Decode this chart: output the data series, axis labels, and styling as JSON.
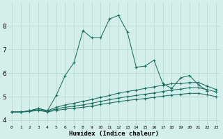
{
  "xlabel": "Humidex (Indice chaleur)",
  "xlim": [
    -0.5,
    23.5
  ],
  "ylim": [
    3.8,
    9.0
  ],
  "xticks": [
    0,
    1,
    2,
    3,
    4,
    5,
    6,
    7,
    8,
    9,
    10,
    11,
    12,
    13,
    14,
    15,
    16,
    17,
    18,
    19,
    20,
    21,
    22,
    23
  ],
  "yticks": [
    4,
    5,
    6,
    7,
    8
  ],
  "bg_color": "#d4eeea",
  "grid_color": "#b2d8d2",
  "line_color": "#1a6e60",
  "line1_x": [
    0,
    1,
    2,
    3,
    4,
    5,
    6,
    7,
    8,
    9,
    10,
    11,
    12,
    13,
    14,
    15,
    16,
    17,
    18,
    19,
    20,
    21,
    22
  ],
  "line1_y": [
    4.35,
    4.35,
    4.4,
    4.5,
    4.4,
    5.05,
    5.9,
    6.45,
    7.8,
    7.5,
    7.5,
    8.3,
    8.45,
    7.75,
    6.25,
    6.3,
    6.55,
    5.55,
    5.35,
    5.8,
    5.9,
    5.5,
    5.25
  ],
  "line2_x": [
    0,
    1,
    2,
    3,
    4,
    5,
    6,
    7,
    8,
    9,
    10,
    11,
    12,
    13,
    14,
    15,
    16,
    17,
    18,
    19,
    20,
    21,
    22,
    23
  ],
  "line2_y": [
    4.35,
    4.35,
    4.4,
    4.5,
    4.4,
    4.55,
    4.65,
    4.72,
    4.8,
    4.88,
    4.97,
    5.05,
    5.15,
    5.22,
    5.28,
    5.35,
    5.42,
    5.48,
    5.55,
    5.55,
    5.6,
    5.6,
    5.45,
    5.3
  ],
  "line3_x": [
    0,
    1,
    2,
    3,
    4,
    5,
    6,
    7,
    8,
    9,
    10,
    11,
    12,
    13,
    14,
    15,
    16,
    17,
    18,
    19,
    20,
    21,
    22,
    23
  ],
  "line3_y": [
    4.35,
    4.35,
    4.38,
    4.45,
    4.38,
    4.48,
    4.55,
    4.6,
    4.65,
    4.72,
    4.8,
    4.87,
    4.94,
    5.0,
    5.05,
    5.1,
    5.16,
    5.22,
    5.28,
    5.32,
    5.38,
    5.38,
    5.3,
    5.2
  ],
  "line4_x": [
    0,
    1,
    2,
    3,
    4,
    5,
    6,
    7,
    8,
    9,
    10,
    11,
    12,
    13,
    14,
    15,
    16,
    17,
    18,
    19,
    20,
    21,
    22,
    23
  ],
  "line4_y": [
    4.35,
    4.35,
    4.37,
    4.42,
    4.35,
    4.42,
    4.47,
    4.51,
    4.55,
    4.6,
    4.67,
    4.73,
    4.79,
    4.84,
    4.88,
    4.92,
    4.97,
    5.02,
    5.07,
    5.1,
    5.14,
    5.14,
    5.08,
    5.0
  ]
}
